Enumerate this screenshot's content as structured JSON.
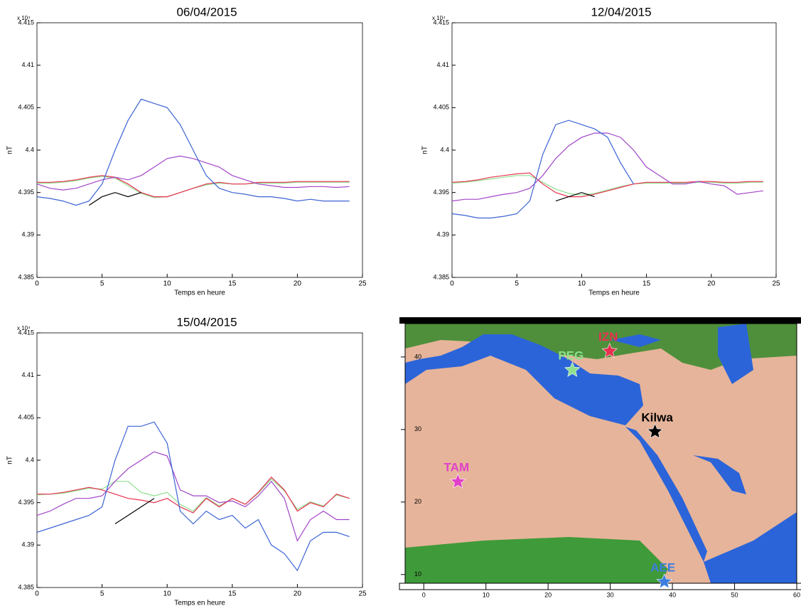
{
  "chart_data": [
    {
      "type": "line",
      "title": "06/04/2015",
      "ylabel": "nT",
      "xlabel": "Temps en heure",
      "multiplier": "x 10⁴",
      "x": [
        0,
        1,
        2,
        3,
        4,
        5,
        6,
        7,
        8,
        9,
        10,
        11,
        12,
        13,
        14,
        15,
        16,
        17,
        18,
        19,
        20,
        21,
        22,
        23,
        24
      ],
      "xlim": [
        0,
        25
      ],
      "xticks": [
        0,
        5,
        10,
        15,
        20,
        25
      ],
      "ylim": [
        4.385,
        4.415
      ],
      "yticks": [
        4.385,
        4.39,
        4.395,
        4.4,
        4.405,
        4.41,
        4.415
      ],
      "series": [
        {
          "color": "#8ee08e",
          "values": [
            4.3961,
            4.3961,
            4.3962,
            4.3964,
            4.3967,
            4.3969,
            4.3967,
            4.3958,
            4.3949,
            4.3944,
            4.3945,
            4.395,
            4.3955,
            4.3959,
            4.3961,
            4.396,
            4.396,
            4.3961,
            4.3961,
            4.3961,
            4.3962,
            4.3962,
            4.3962,
            4.3962,
            4.3962
          ]
        },
        {
          "color": "#e8304f",
          "values": [
            4.3962,
            4.3962,
            4.3963,
            4.3965,
            4.3968,
            4.397,
            4.3968,
            4.396,
            4.395,
            4.3945,
            4.3945,
            4.395,
            4.3955,
            4.396,
            4.3962,
            4.396,
            4.396,
            4.3962,
            4.3962,
            4.3962,
            4.3963,
            4.3963,
            4.3963,
            4.3963,
            4.3963
          ]
        },
        {
          "color": "#a245c8",
          "values": [
            4.396,
            4.3955,
            4.3953,
            4.3955,
            4.396,
            4.3965,
            4.3968,
            4.3965,
            4.397,
            4.398,
            4.399,
            4.3993,
            4.399,
            4.3985,
            4.398,
            4.397,
            4.3965,
            4.396,
            4.3958,
            4.3956,
            4.3956,
            4.3957,
            4.3957,
            4.3956,
            4.3957
          ]
        },
        {
          "color": "#3c64d4",
          "values": [
            4.3945,
            4.3943,
            4.394,
            4.3935,
            4.394,
            4.396,
            4.4,
            4.4035,
            4.406,
            4.4055,
            4.405,
            4.403,
            4.4,
            4.397,
            4.3955,
            4.395,
            4.3948,
            4.3945,
            4.3945,
            4.3943,
            4.394,
            4.3942,
            4.394,
            4.394,
            4.394
          ]
        },
        {
          "color": "#000000",
          "values": [
            null,
            null,
            null,
            null,
            4.3935,
            4.3945,
            4.395,
            4.3945,
            4.395,
            null,
            null,
            null,
            null,
            null,
            null,
            null,
            null,
            null,
            null,
            null,
            null,
            null,
            null,
            null,
            null
          ]
        }
      ]
    },
    {
      "type": "line",
      "title": "12/04/2015",
      "ylabel": "nT",
      "xlabel": "Temps en heure",
      "multiplier": "x 10⁴",
      "x": [
        0,
        1,
        2,
        3,
        4,
        5,
        6,
        7,
        8,
        9,
        10,
        11,
        12,
        13,
        14,
        15,
        16,
        17,
        18,
        19,
        20,
        21,
        22,
        23,
        24
      ],
      "xlim": [
        0,
        25
      ],
      "xticks": [
        0,
        5,
        10,
        15,
        20,
        25
      ],
      "ylim": [
        4.385,
        4.415
      ],
      "yticks": [
        4.385,
        4.39,
        4.395,
        4.4,
        4.405,
        4.41,
        4.415
      ],
      "series": [
        {
          "color": "#8ee08e",
          "values": [
            4.3961,
            4.3962,
            4.3964,
            4.3966,
            4.3968,
            4.397,
            4.397,
            4.3962,
            4.3954,
            4.3949,
            4.3947,
            4.3949,
            4.3953,
            4.3957,
            4.396,
            4.3961,
            4.3961,
            4.3961,
            4.3961,
            4.3962,
            4.3962,
            4.3961,
            4.3961,
            4.3962,
            4.3962
          ]
        },
        {
          "color": "#e8304f",
          "values": [
            4.3962,
            4.3963,
            4.3965,
            4.3968,
            4.397,
            4.3972,
            4.3973,
            4.396,
            4.395,
            4.3945,
            4.3945,
            4.3948,
            4.3952,
            4.3956,
            4.396,
            4.3962,
            4.3962,
            4.3962,
            4.3962,
            4.3963,
            4.3963,
            4.3962,
            4.3962,
            4.3963,
            4.3963
          ]
        },
        {
          "color": "#a245c8",
          "values": [
            4.394,
            4.3942,
            4.3942,
            4.3945,
            4.3948,
            4.395,
            4.3955,
            4.397,
            4.399,
            4.4005,
            4.4015,
            4.402,
            4.402,
            4.4015,
            4.4,
            4.398,
            4.397,
            4.396,
            4.396,
            4.3963,
            4.396,
            4.3958,
            4.3948,
            4.395,
            4.3952
          ]
        },
        {
          "color": "#3c64d4",
          "values": [
            4.3925,
            4.3923,
            4.392,
            4.392,
            4.3922,
            4.3925,
            4.394,
            4.3995,
            4.403,
            4.4035,
            4.403,
            4.4025,
            4.4015,
            4.3985,
            4.396,
            null,
            null,
            null,
            null,
            null,
            null,
            null,
            null,
            null,
            null
          ]
        },
        {
          "color": "#000000",
          "values": [
            null,
            null,
            null,
            null,
            null,
            null,
            null,
            null,
            4.394,
            4.3945,
            4.395,
            4.3945,
            null,
            null,
            null,
            null,
            null,
            null,
            null,
            null,
            null,
            null,
            null,
            null,
            null
          ]
        }
      ]
    },
    {
      "type": "line",
      "title": "15/04/2015",
      "ylabel": "nT",
      "xlabel": "Temps en heure",
      "multiplier": "x 10⁴",
      "x": [
        0,
        1,
        2,
        3,
        4,
        5,
        6,
        7,
        8,
        9,
        10,
        11,
        12,
        13,
        14,
        15,
        16,
        17,
        18,
        19,
        20,
        21,
        22,
        23,
        24
      ],
      "xlim": [
        0,
        25
      ],
      "xticks": [
        0,
        5,
        10,
        15,
        20,
        25
      ],
      "ylim": [
        4.385,
        4.415
      ],
      "yticks": [
        4.385,
        4.39,
        4.395,
        4.4,
        4.405,
        4.41,
        4.415
      ],
      "series": [
        {
          "color": "#8ee08e",
          "values": [
            4.3959,
            4.396,
            4.3961,
            4.3964,
            4.3967,
            4.3966,
            4.3975,
            4.3975,
            4.3962,
            4.3958,
            4.3962,
            4.3948,
            4.394,
            4.3956,
            4.3946,
            4.3955,
            4.3948,
            4.3961,
            4.3978,
            4.3964,
            4.3942,
            4.3951,
            4.3946,
            4.3959,
            4.3955
          ]
        },
        {
          "color": "#e8304f",
          "values": [
            4.396,
            4.396,
            4.3962,
            4.3965,
            4.3968,
            4.3965,
            4.396,
            4.3955,
            4.3953,
            4.395,
            4.3955,
            4.3945,
            4.3938,
            4.3955,
            4.3945,
            4.3955,
            4.3948,
            4.3962,
            4.398,
            4.3965,
            4.394,
            4.395,
            4.3945,
            4.396,
            4.3955
          ]
        },
        {
          "color": "#a245c8",
          "values": [
            4.3935,
            4.394,
            4.3948,
            4.3955,
            4.3955,
            4.3958,
            4.3975,
            4.399,
            4.4,
            4.401,
            4.4005,
            4.3965,
            4.3958,
            4.3958,
            4.395,
            4.3952,
            4.3945,
            4.3958,
            4.3975,
            4.3955,
            4.3905,
            4.393,
            4.394,
            4.393,
            4.393
          ]
        },
        {
          "color": "#3c64d4",
          "values": [
            4.3915,
            4.392,
            4.3925,
            4.393,
            4.3935,
            4.3945,
            4.4,
            4.404,
            4.404,
            4.4045,
            4.402,
            4.394,
            4.3925,
            4.394,
            4.393,
            4.3935,
            4.392,
            4.393,
            4.39,
            4.389,
            4.387,
            4.3905,
            4.3915,
            4.3915,
            4.391
          ]
        },
        {
          "color": "#000000",
          "values": [
            null,
            null,
            null,
            null,
            null,
            null,
            4.3925,
            4.3935,
            4.3945,
            4.3955,
            null,
            null,
            null,
            null,
            null,
            null,
            null,
            null,
            null,
            null,
            null,
            null,
            null,
            null,
            null
          ]
        }
      ]
    },
    {
      "type": "map",
      "xlim": [
        -3,
        60
      ],
      "xticks": [
        0,
        10,
        20,
        30,
        40,
        50,
        60
      ],
      "ylim": [
        8.8,
        44.6
      ],
      "yticks": [
        10,
        20,
        30,
        40
      ],
      "points": [
        {
          "label": "IZN",
          "color": "#e8304f",
          "x": 29.9,
          "y": 40.8
        },
        {
          "label": "PEG",
          "color": "#8ee08e",
          "x": 23.9,
          "y": 38.2
        },
        {
          "label": "Kilwa",
          "color": "#000000",
          "x": 37.2,
          "y": 29.7
        },
        {
          "label": "TAM",
          "color": "#e040c8",
          "x": 5.5,
          "y": 22.8
        },
        {
          "label": "AEE",
          "color": "#3c7ee0",
          "x": 38.7,
          "y": 9.0
        }
      ]
    }
  ]
}
